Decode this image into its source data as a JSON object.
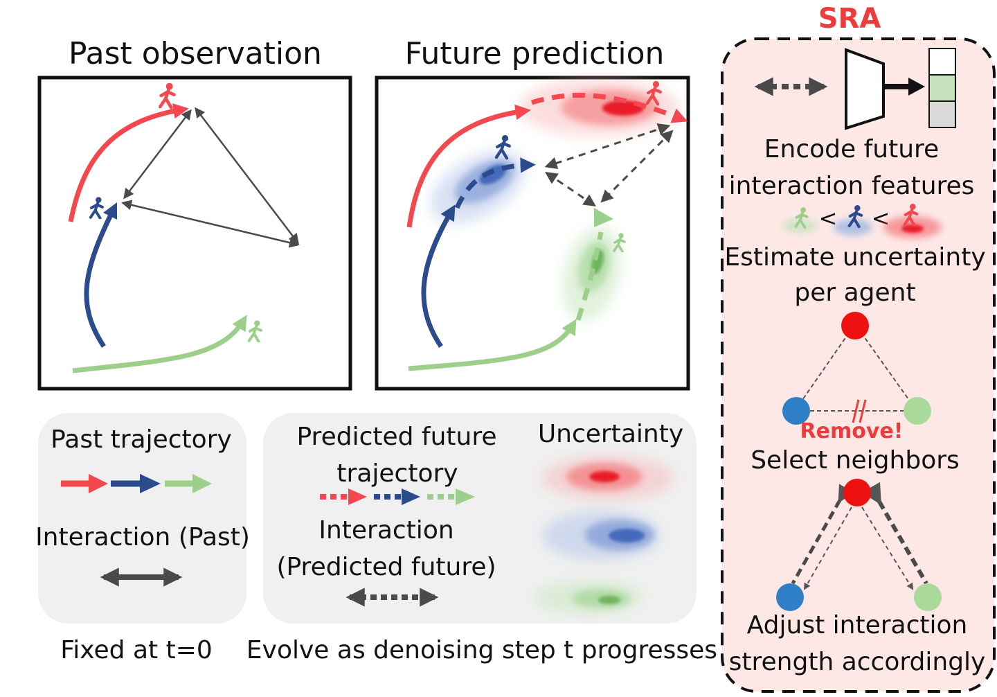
{
  "panels": {
    "past_title": "Past observation",
    "future_title": "Future prediction"
  },
  "legend": {
    "past_trajectory": "Past trajectory",
    "interaction_past": "Interaction (Past)",
    "fixed_caption": "Fixed at t=0",
    "predicted_line1": "Predicted future",
    "predicted_line2": "trajectory",
    "uncertainty": "Uncertainty",
    "interaction_future_line1": "Interaction",
    "interaction_future_line2": "(Predicted future)",
    "evolve_caption": "Evolve as denoising step t progresses"
  },
  "sra": {
    "title": "SRA",
    "encode_line1": "Encode future",
    "encode_line2": "interaction features",
    "estimate_line1": "Estimate uncertainty",
    "estimate_line2": "per agent",
    "remove_label": "Remove!",
    "select_label": "Select neighbors",
    "adjust_line1": "Adjust interaction",
    "adjust_line2": "strength accordingly",
    "less_than_1": "<",
    "less_than_2": "<"
  },
  "colors": {
    "red": "#f4484f",
    "blue": "#2b4b8c",
    "green": "#9ccf8a",
    "dark_gray": "#4a4a4a",
    "sra_bg": "#fde8e6",
    "legend_bg": "#f0f0f0",
    "sra_title": "#ee3b3b"
  }
}
